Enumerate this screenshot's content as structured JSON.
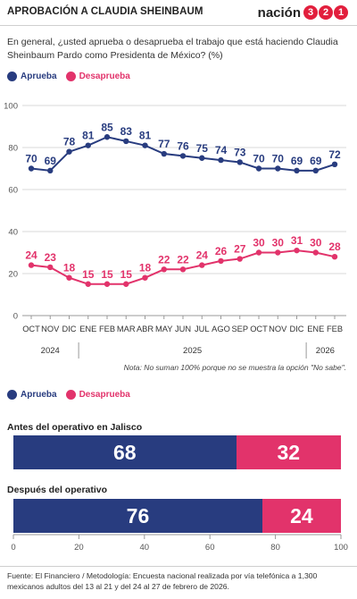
{
  "header": {
    "title": "APROBACIÓN A CLAUDIA SHEINBAUM",
    "logo_word": "nación",
    "logo_digits": [
      "3",
      "2",
      "1"
    ]
  },
  "question": "En general, ¿usted aprueba o desaprueba el trabajo que está haciendo Claudia Sheinbaum Pardo como Presidenta de México? (%)",
  "colors": {
    "aprueba": "#283c7f",
    "desaprueba": "#e2336b"
  },
  "legend": {
    "aprueba": "Aprueba",
    "desaprueba": "Desaprueba"
  },
  "note": "Nota: No suman 100% porque no se muestra la opción \"No sabe\".",
  "sections": {
    "antes": "Antes del operativo en Jalisco",
    "despues": "Después del operativo"
  },
  "source": "Fuente: El Financiero / Metodología: Encuesta nacional realizada por vía telefónica a 1,300 mexicanos adultos del 13 al 21 y del 24 al 27 de febrero de 2026.",
  "chart_data": [
    {
      "type": "line",
      "x": [
        "OCT",
        "NOV",
        "DIC",
        "ENE",
        "FEB",
        "MAR",
        "ABR",
        "MAY",
        "JUN",
        "JUL",
        "AGO",
        "SEP",
        "OCT",
        "NOV",
        "DIC",
        "ENE",
        "FEB"
      ],
      "year_labels": [
        "2024",
        "2025",
        "2026"
      ],
      "series": [
        {
          "name": "Aprueba",
          "values": [
            70,
            69,
            78,
            81,
            85,
            83,
            81,
            77,
            76,
            75,
            74,
            73,
            70,
            70,
            69,
            69,
            72
          ]
        },
        {
          "name": "Desaprueba",
          "values": [
            24,
            23,
            18,
            15,
            15,
            15,
            18,
            22,
            22,
            24,
            26,
            27,
            30,
            30,
            31,
            30,
            28
          ]
        }
      ],
      "yticks": [
        0,
        20,
        40,
        60,
        80,
        100
      ],
      "ylim": [
        0,
        100
      ],
      "grid": true
    },
    {
      "type": "bar",
      "orientation": "horizontal",
      "stacked": true,
      "categories": [
        "Antes del operativo en Jalisco",
        "Después del operativo"
      ],
      "series": [
        {
          "name": "Aprueba",
          "values": [
            68,
            76
          ]
        },
        {
          "name": "Desaprueba",
          "values": [
            32,
            24
          ]
        }
      ],
      "xticks": [
        0,
        20,
        40,
        60,
        80,
        100
      ],
      "xlim": [
        0,
        100
      ]
    }
  ]
}
